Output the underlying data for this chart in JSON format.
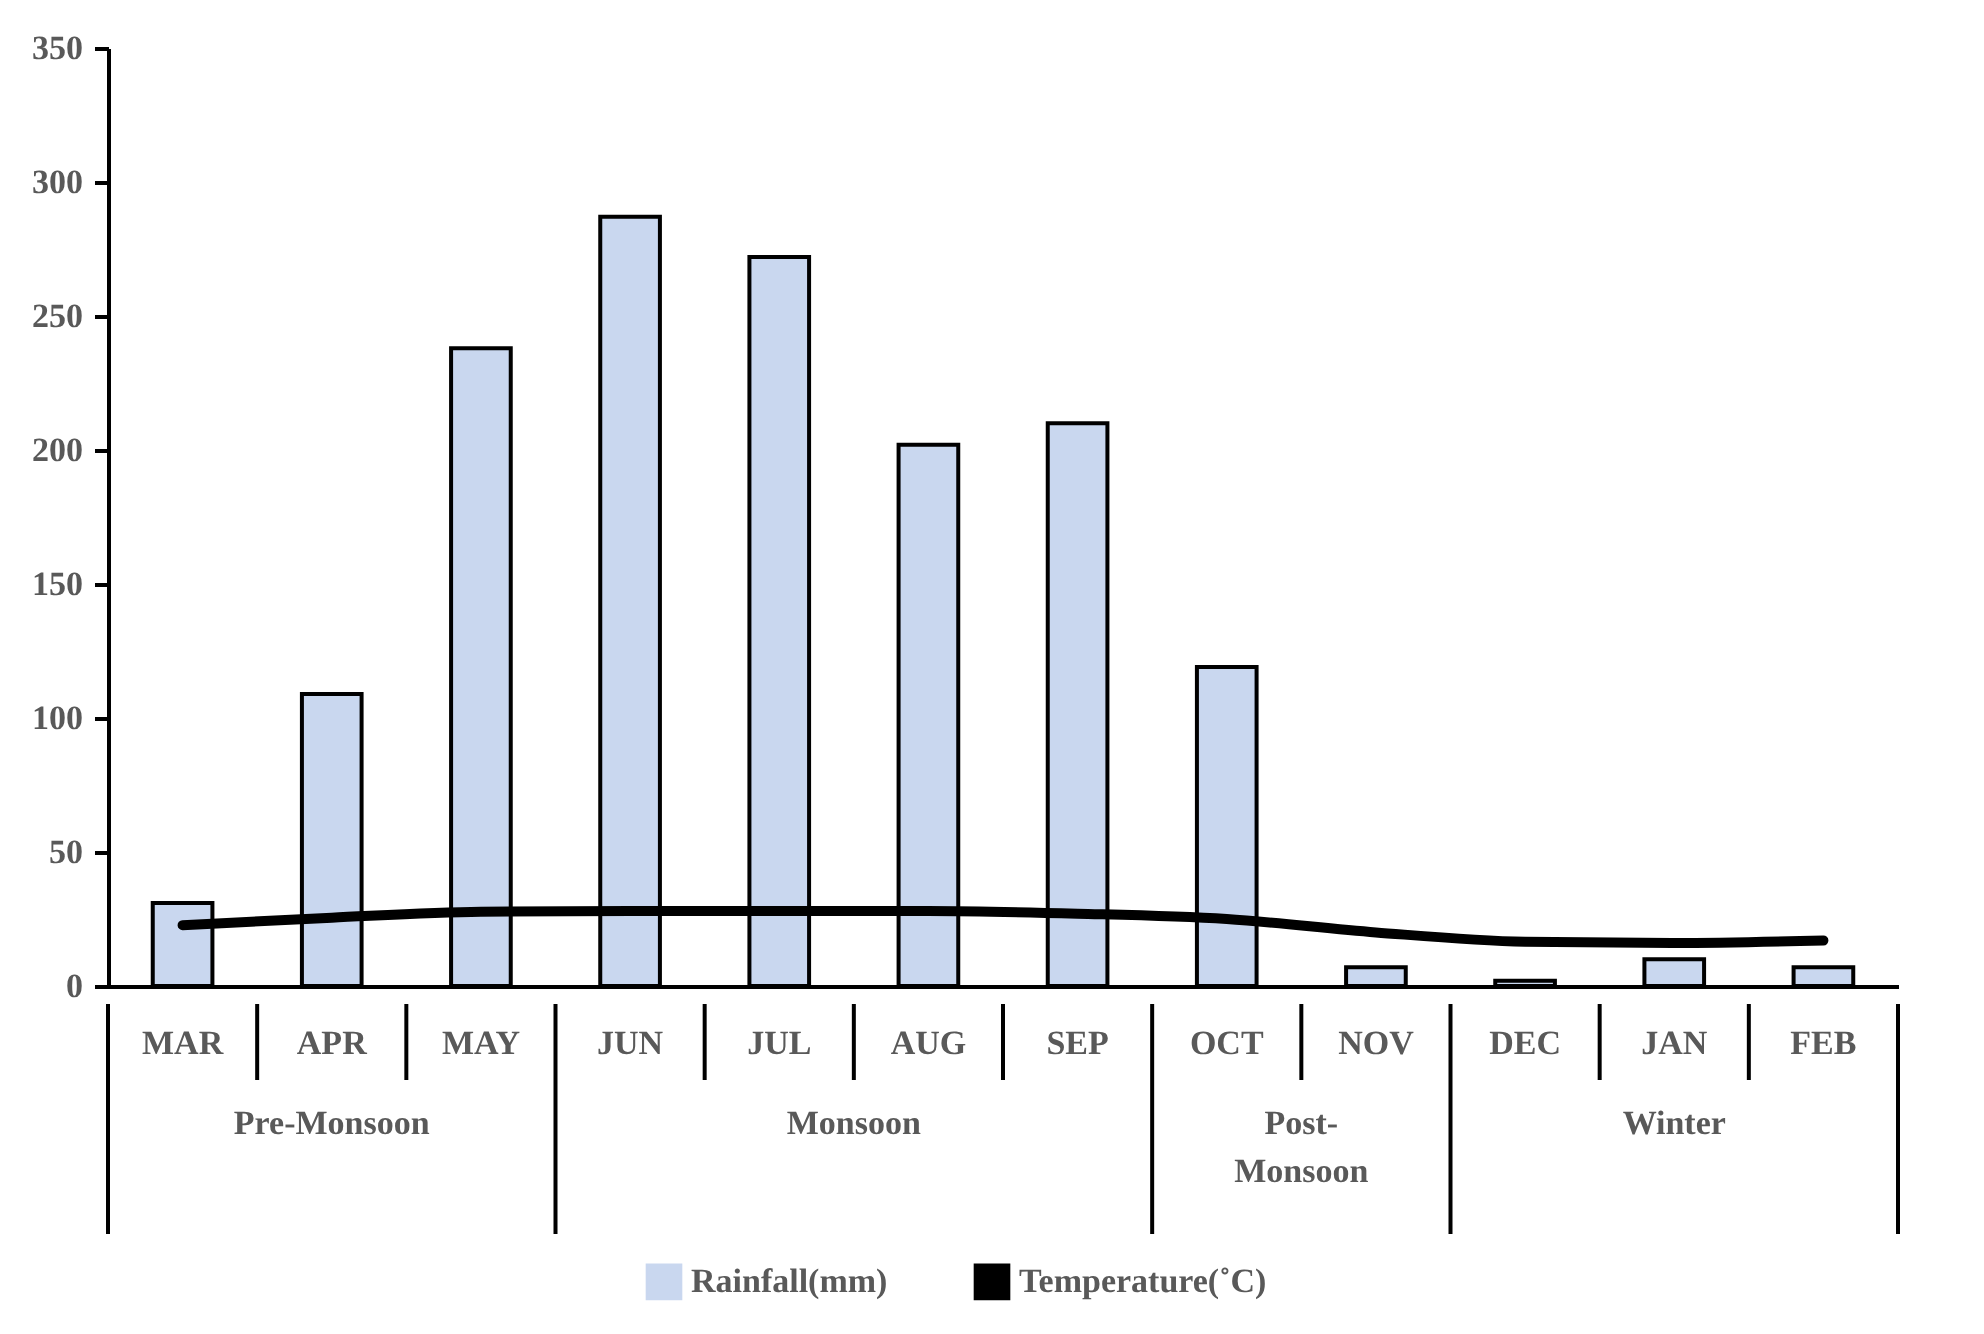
{
  "chart_data": {
    "type": "bar",
    "categories": [
      "MAR",
      "APR",
      "MAY",
      "JUN",
      "JUL",
      "AUG",
      "SEP",
      "OCT",
      "NOV",
      "DEC",
      "JAN",
      "FEB"
    ],
    "series": [
      {
        "name": "Rainfall(mm)",
        "color": "#c9d7ef",
        "values": [
          31,
          109,
          238,
          287,
          272,
          202,
          210,
          119,
          7,
          2,
          10,
          7
        ]
      },
      {
        "name": "Temperature(˚C)",
        "type": "line",
        "color": "#000000",
        "values": [
          22.7,
          25.5,
          27.7,
          28,
          28,
          28,
          27,
          25,
          20,
          16.5,
          16,
          17
        ]
      }
    ],
    "annotations": [
      "Pre-Monsoon",
      "Monsoon",
      "Post-Monsoon",
      "Winter"
    ],
    "ylim": [
      0,
      350
    ],
    "yticks": [
      0,
      50,
      100,
      150,
      200,
      250,
      300,
      350
    ],
    "grid": false,
    "legend": "bottom"
  }
}
